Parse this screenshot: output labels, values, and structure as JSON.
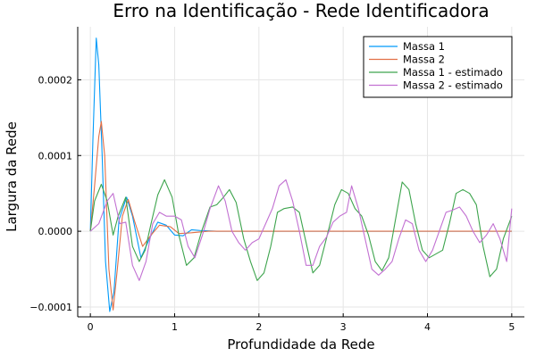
{
  "chart_data": {
    "type": "line",
    "title": "Erro na Identificação - Rede Identificadora",
    "xlabel": "Profundidade da Rede",
    "ylabel": "Largura da Rede",
    "xlim": [
      -0.15,
      5.15
    ],
    "ylim": [
      -0.000113,
      0.00027
    ],
    "x_ticks": [
      0,
      1,
      2,
      3,
      4,
      5
    ],
    "x_tick_labels": [
      "0",
      "1",
      "2",
      "3",
      "4",
      "5"
    ],
    "y_ticks": [
      -0.0001,
      0,
      0.0001,
      0.0002
    ],
    "y_tick_labels": [
      "−0.0001",
      "0.0000",
      "0.0001",
      "0.0002"
    ],
    "grid": true,
    "legend_position": "top-right",
    "series": [
      {
        "name": "Massa 1",
        "color": "#009af9",
        "points": [
          [
            0,
            0
          ],
          [
            0.03,
            0.00012
          ],
          [
            0.07,
            0.000255
          ],
          [
            0.1,
            0.00022
          ],
          [
            0.14,
            0.0001
          ],
          [
            0.18,
            -4e-05
          ],
          [
            0.23,
            -0.000106
          ],
          [
            0.28,
            -8e-05
          ],
          [
            0.34,
            1.5e-05
          ],
          [
            0.43,
            4.5e-05
          ],
          [
            0.5,
            2e-05
          ],
          [
            0.6,
            -3.5e-05
          ],
          [
            0.7,
            -1e-05
          ],
          [
            0.8,
            1.2e-05
          ],
          [
            0.9,
            8e-06
          ],
          [
            1.0,
            -5e-06
          ],
          [
            1.1,
            -6e-06
          ],
          [
            1.2,
            2e-06
          ],
          [
            1.3,
            1e-06
          ],
          [
            1.5,
            0
          ],
          [
            2,
            0
          ],
          [
            3,
            0
          ],
          [
            4,
            0
          ],
          [
            5,
            0
          ]
        ]
      },
      {
        "name": "Massa 2",
        "color": "#e26f46",
        "points": [
          [
            0,
            0
          ],
          [
            0.05,
            6e-05
          ],
          [
            0.1,
            0.000125
          ],
          [
            0.13,
            0.000145
          ],
          [
            0.17,
            0.0001
          ],
          [
            0.22,
            -5e-05
          ],
          [
            0.27,
            -0.000104
          ],
          [
            0.32,
            -5e-05
          ],
          [
            0.38,
            2e-05
          ],
          [
            0.45,
            4.2e-05
          ],
          [
            0.52,
            1.5e-05
          ],
          [
            0.62,
            -2e-05
          ],
          [
            0.72,
            -5e-06
          ],
          [
            0.82,
            8e-06
          ],
          [
            0.95,
            6e-06
          ],
          [
            1.05,
            -3e-06
          ],
          [
            1.2,
            -2e-06
          ],
          [
            1.4,
            0
          ],
          [
            2,
            0
          ],
          [
            3,
            0
          ],
          [
            4,
            0
          ],
          [
            5,
            0
          ]
        ]
      },
      {
        "name": "Massa 1 - estimado",
        "color": "#3da44d",
        "points": [
          [
            0,
            0
          ],
          [
            0.05,
            4e-05
          ],
          [
            0.13,
            6.2e-05
          ],
          [
            0.2,
            4e-05
          ],
          [
            0.27,
            -5e-06
          ],
          [
            0.33,
            2e-05
          ],
          [
            0.42,
            4.5e-05
          ],
          [
            0.5,
            -2e-05
          ],
          [
            0.58,
            -4e-05
          ],
          [
            0.65,
            -2.5e-05
          ],
          [
            0.72,
            1e-05
          ],
          [
            0.8,
            4.8e-05
          ],
          [
            0.88,
            6.8e-05
          ],
          [
            0.97,
            4.5e-05
          ],
          [
            1.05,
            -5e-06
          ],
          [
            1.14,
            -4.5e-05
          ],
          [
            1.23,
            -3.5e-05
          ],
          [
            1.32,
            0
          ],
          [
            1.42,
            3.2e-05
          ],
          [
            1.5,
            3.5e-05
          ],
          [
            1.58,
            4.5e-05
          ],
          [
            1.65,
            5.5e-05
          ],
          [
            1.73,
            3.8e-05
          ],
          [
            1.82,
            -1e-05
          ],
          [
            1.9,
            -4e-05
          ],
          [
            1.98,
            -6.5e-05
          ],
          [
            2.06,
            -5.5e-05
          ],
          [
            2.14,
            -2e-05
          ],
          [
            2.22,
            2.5e-05
          ],
          [
            2.3,
            3e-05
          ],
          [
            2.4,
            3.2e-05
          ],
          [
            2.48,
            2.5e-05
          ],
          [
            2.56,
            -1.5e-05
          ],
          [
            2.64,
            -5.5e-05
          ],
          [
            2.72,
            -4.5e-05
          ],
          [
            2.8,
            -1e-05
          ],
          [
            2.9,
            3.5e-05
          ],
          [
            2.98,
            5.5e-05
          ],
          [
            3.06,
            5e-05
          ],
          [
            3.14,
            3e-05
          ],
          [
            3.22,
            2e-05
          ],
          [
            3.3,
            -5e-06
          ],
          [
            3.38,
            -4e-05
          ],
          [
            3.46,
            -5.2e-05
          ],
          [
            3.54,
            -3.5e-05
          ],
          [
            3.62,
            1.5e-05
          ],
          [
            3.7,
            6.5e-05
          ],
          [
            3.78,
            5.5e-05
          ],
          [
            3.86,
            1e-05
          ],
          [
            3.94,
            -2.5e-05
          ],
          [
            4.02,
            -3.5e-05
          ],
          [
            4.1,
            -3e-05
          ],
          [
            4.18,
            -2.5e-05
          ],
          [
            4.26,
            1e-05
          ],
          [
            4.34,
            5e-05
          ],
          [
            4.42,
            5.5e-05
          ],
          [
            4.5,
            5e-05
          ],
          [
            4.58,
            3.5e-05
          ],
          [
            4.66,
            -2e-05
          ],
          [
            4.74,
            -6e-05
          ],
          [
            4.82,
            -5e-05
          ],
          [
            4.9,
            -1e-05
          ],
          [
            5.0,
            2e-05
          ]
        ]
      },
      {
        "name": "Massa 2 - estimado",
        "color": "#c271d2",
        "points": [
          [
            0,
            0
          ],
          [
            0.1,
            1e-05
          ],
          [
            0.2,
            4e-05
          ],
          [
            0.27,
            5e-05
          ],
          [
            0.35,
            1e-05
          ],
          [
            0.42,
            1.2e-05
          ],
          [
            0.5,
            -4.5e-05
          ],
          [
            0.58,
            -6.5e-05
          ],
          [
            0.66,
            -4e-05
          ],
          [
            0.74,
            1e-05
          ],
          [
            0.82,
            2.5e-05
          ],
          [
            0.9,
            2e-05
          ],
          [
            1.0,
            2e-05
          ],
          [
            1.08,
            1.5e-05
          ],
          [
            1.16,
            -2e-05
          ],
          [
            1.24,
            -3.5e-05
          ],
          [
            1.33,
            -5e-06
          ],
          [
            1.42,
            3e-05
          ],
          [
            1.52,
            6e-05
          ],
          [
            1.6,
            4e-05
          ],
          [
            1.68,
            0
          ],
          [
            1.76,
            -1.5e-05
          ],
          [
            1.84,
            -2.5e-05
          ],
          [
            1.92,
            -1.5e-05
          ],
          [
            2.0,
            -1e-05
          ],
          [
            2.08,
            1e-05
          ],
          [
            2.16,
            3e-05
          ],
          [
            2.24,
            6e-05
          ],
          [
            2.32,
            6.8e-05
          ],
          [
            2.4,
            4e-05
          ],
          [
            2.48,
            0
          ],
          [
            2.56,
            -4.5e-05
          ],
          [
            2.64,
            -4.5e-05
          ],
          [
            2.72,
            -2e-05
          ],
          [
            2.8,
            -8e-06
          ],
          [
            2.88,
            1.2e-05
          ],
          [
            2.96,
            2e-05
          ],
          [
            3.04,
            2.5e-05
          ],
          [
            3.1,
            6e-05
          ],
          [
            3.18,
            3e-05
          ],
          [
            3.26,
            -1e-05
          ],
          [
            3.34,
            -5e-05
          ],
          [
            3.42,
            -5.8e-05
          ],
          [
            3.5,
            -5e-05
          ],
          [
            3.58,
            -4e-05
          ],
          [
            3.66,
            -1e-05
          ],
          [
            3.74,
            1.5e-05
          ],
          [
            3.82,
            1e-05
          ],
          [
            3.9,
            -2.5e-05
          ],
          [
            3.98,
            -4e-05
          ],
          [
            4.06,
            -2.5e-05
          ],
          [
            4.14,
            0
          ],
          [
            4.22,
            2.5e-05
          ],
          [
            4.3,
            2.8e-05
          ],
          [
            4.38,
            3.2e-05
          ],
          [
            4.46,
            2e-05
          ],
          [
            4.54,
            0
          ],
          [
            4.62,
            -1.5e-05
          ],
          [
            4.7,
            -5e-06
          ],
          [
            4.78,
            1e-05
          ],
          [
            4.86,
            -1e-05
          ],
          [
            4.94,
            -4e-05
          ],
          [
            5.0,
            3e-05
          ]
        ]
      }
    ]
  }
}
